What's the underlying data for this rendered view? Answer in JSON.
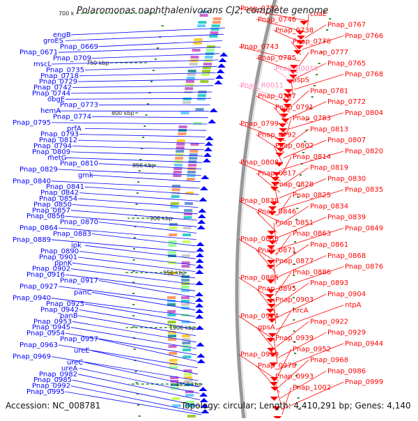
{
  "title": "Polaromonas naphthalenivorans CJ2, complete genome",
  "accession": "Accession: NC_008781",
  "summary": "Topology: circular; Length: 4,410,291 bp; Genes: 4,140",
  "colors": {
    "forward_genes": "#ff0000",
    "reverse_genes": "#0000ff",
    "rna_genes": "#ff88bb",
    "backbone": "#999999",
    "gc_marker": "#2e8b2e"
  },
  "kbp_markers": [
    "700 k",
    "750 kbp",
    "800 kbp",
    "850 kbp",
    "900 kbp",
    "950 kbp",
    "1000 kbp",
    "1050 kbp"
  ],
  "left_labels": [
    "engB",
    "groES",
    "Pnap_0669",
    "Pnap_0671",
    "Pnap_0709",
    "mscL",
    "Pnap_0735",
    "Pnap_0718",
    "Pnap_0729",
    "Pnap_0742",
    "Pnap_0744",
    "obgE",
    "Pnap_0773",
    "hemA",
    "Pnap_0774",
    "Pnap_0795",
    "prfA",
    "Pnap_0793",
    "Pnap_0812",
    "Pnap_0794",
    "Pnap_0809",
    "metG",
    "Pnap_0810",
    "Pnap_0829",
    "gmk",
    "Pnap_0840",
    "Pnap_0841",
    "Pnap_0842",
    "Pnap_0854",
    "Pnap_0850",
    "Pnap_0857",
    "Pnap_0856",
    "Pnap_0870",
    "Pnap_0864",
    "Pnap_0883",
    "Pnap_0889",
    "ipk",
    "Pnap_0890",
    "Pnap_0901",
    "ppnK",
    "Pnap_0902",
    "Pnap_0916",
    "Pnap_0917",
    "Pnap_0927",
    "panC",
    "Pnap_0940",
    "Pnap_0925",
    "Pnap_0942",
    "panB",
    "Pnap_0953",
    "Pnap_0945",
    "Pnap_0954",
    "Pnap_0957",
    "Pnap_0963",
    "ureE",
    "Pnap_0969",
    "ureC",
    "ureA",
    "Pnap_0982",
    "Pnap_0985",
    "Pnap_0992",
    "Pnap_0995"
  ],
  "right_labels": [
    "Pnap_0752",
    "coaE",
    "Pnap_0746",
    "Pnap_0767",
    "Pnap_0738",
    "Pnap_0766",
    "Pnap_0778",
    "Pnap_0743",
    "Pnap_0777",
    "Pnap_0785",
    "Pnap_0765",
    "Pnap_R0010",
    "Pnap_0768",
    "aspS",
    "Pnap_R0011",
    "Pnap_0781",
    "Pnap_0797",
    "Pnap_0772",
    "Pnap_0791",
    "Pnap_0804",
    "Pnap_0783",
    "Pnap_0799",
    "Pnap_0813",
    "Pnap_0792",
    "Pnap_0807",
    "Pnap_0802",
    "Pnap_0820",
    "Pnap_0814",
    "Pnap_0808",
    "Pnap_0819",
    "Pnap_0817",
    "Pnap_0830",
    "Pnap_0828",
    "Pnap_0835",
    "Pnap_0825",
    "Pnap_0838",
    "Pnap_0834",
    "Pnap_0846",
    "Pnap_0839",
    "Pnap_0851",
    "Pnap_0849",
    "Pnap_0863",
    "Pnap_0855",
    "Pnap_0861",
    "Pnap_0871",
    "Pnap_0868",
    "Pnap_0877",
    "Pnap_0876",
    "Pnap_0886",
    "Pnap_0885",
    "Pnap_0893",
    "Pnap_0895",
    "Pnap_0904",
    "Pnap_0903",
    "ntpA",
    "hrcA",
    "Pnap_0914",
    "Pnap_0922",
    "gpsA",
    "Pnap_0929",
    "Pnap_0939",
    "Pnap_0944",
    "Pnap_0952",
    "Pnap_0959",
    "Pnap_0968",
    "Pnap_0978",
    "Pnap_0986",
    "Pnap_0993",
    "Pnap_0999",
    "Pnap_1002"
  ]
}
